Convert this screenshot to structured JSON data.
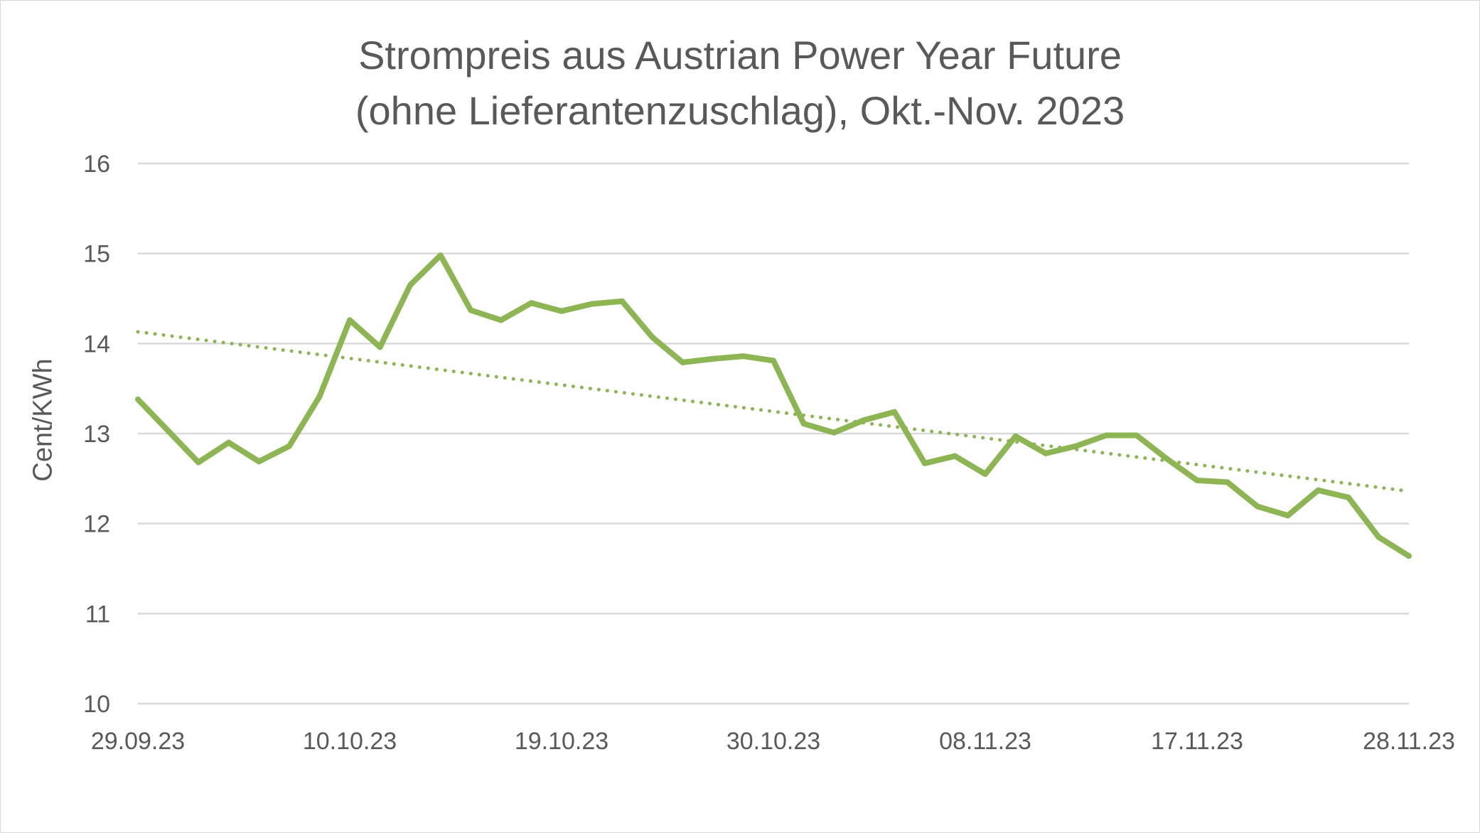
{
  "chart_data": {
    "type": "line",
    "title": [
      "Strompreis aus Austrian Power Year Future",
      "(ohne Lieferantenzuschlag), Okt.-Nov. 2023"
    ],
    "ylabel": "Cent/KWh",
    "xlabel": "",
    "ylim": [
      10,
      16
    ],
    "yticks": [
      "10",
      "11",
      "12",
      "13",
      "14",
      "15",
      "16"
    ],
    "xticks": [
      {
        "label": "29.09.23",
        "index": 0
      },
      {
        "label": "10.10.23",
        "index": 7
      },
      {
        "label": "19.10.23",
        "index": 14
      },
      {
        "label": "30.10.23",
        "index": 21
      },
      {
        "label": "08.11.23",
        "index": 28
      },
      {
        "label": "17.11.23",
        "index": 35
      },
      {
        "label": "28.11.23",
        "index": 42
      }
    ],
    "grid": true,
    "legend": "none",
    "series": [
      {
        "color": "#8db553",
        "style": "solid",
        "values": [
          13.38,
          13.03,
          12.68,
          12.9,
          12.69,
          12.86,
          13.41,
          14.26,
          13.96,
          14.65,
          14.98,
          14.37,
          14.26,
          14.45,
          14.36,
          14.44,
          14.47,
          14.07,
          13.79,
          13.83,
          13.86,
          13.81,
          13.11,
          13.01,
          13.15,
          13.24,
          12.67,
          12.75,
          12.55,
          12.97,
          12.78,
          12.86,
          12.98,
          12.98,
          12.72,
          12.48,
          12.46,
          12.19,
          12.09,
          12.37,
          12.29,
          11.85,
          11.64
        ]
      },
      {
        "color": "#8db553",
        "style": "dotted",
        "type": "linear-trend",
        "values": [
          14.13,
          12.36
        ]
      }
    ]
  }
}
